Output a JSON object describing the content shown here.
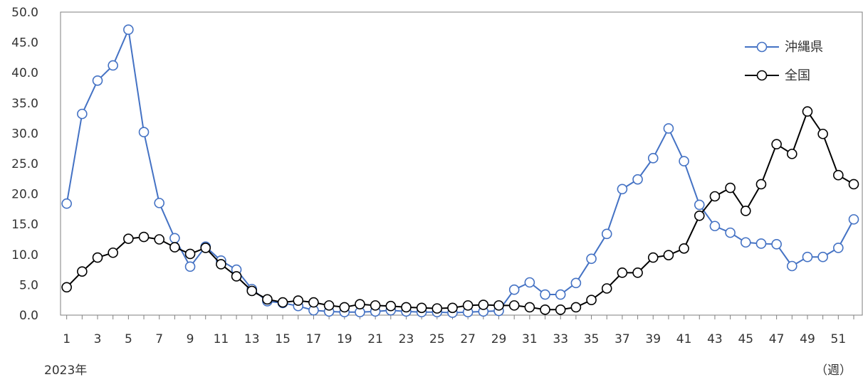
{
  "chart_data": {
    "type": "line",
    "x_label_note": "2023年",
    "x_unit": "（週）",
    "ylim": [
      0,
      50
    ],
    "y_ticks": [
      "0.0",
      "5.0",
      "10.0",
      "15.0",
      "20.0",
      "25.0",
      "30.0",
      "35.0",
      "40.0",
      "45.0",
      "50.0"
    ],
    "x": [
      1,
      2,
      3,
      4,
      5,
      6,
      7,
      8,
      9,
      10,
      11,
      12,
      13,
      14,
      15,
      16,
      17,
      18,
      19,
      20,
      21,
      22,
      23,
      24,
      25,
      26,
      27,
      28,
      29,
      30,
      31,
      32,
      33,
      34,
      35,
      36,
      37,
      38,
      39,
      40,
      41,
      42,
      43,
      44,
      45,
      46,
      47,
      48,
      49,
      50,
      51,
      52
    ],
    "x_tick_labels": [
      "1",
      "3",
      "5",
      "7",
      "9",
      "11",
      "13",
      "15",
      "17",
      "19",
      "21",
      "23",
      "25",
      "27",
      "29",
      "31",
      "33",
      "35",
      "37",
      "39",
      "41",
      "43",
      "45",
      "47",
      "49",
      "51"
    ],
    "legend_position": "top-right",
    "grid": false,
    "series": [
      {
        "name": "沖縄県",
        "color": "#4472C4",
        "values": [
          18.4,
          33.2,
          38.7,
          41.2,
          47.1,
          30.2,
          18.5,
          12.7,
          8.0,
          11.3,
          9.0,
          7.5,
          4.3,
          2.3,
          2.0,
          1.5,
          0.8,
          0.6,
          0.5,
          0.5,
          0.6,
          0.8,
          0.6,
          0.5,
          0.5,
          0.4,
          0.5,
          0.6,
          0.7,
          4.2,
          5.4,
          3.4,
          3.4,
          5.3,
          9.3,
          13.4,
          20.8,
          22.4,
          25.9,
          30.8,
          25.4,
          18.2,
          14.7,
          13.6,
          12.0,
          11.8,
          11.7,
          8.1,
          9.6,
          9.6,
          11.1,
          15.8
        ]
      },
      {
        "name": "全国",
        "color": "#000000",
        "values": [
          4.6,
          7.2,
          9.5,
          10.3,
          12.6,
          12.9,
          12.5,
          11.2,
          10.1,
          11.1,
          8.4,
          6.4,
          4.0,
          2.6,
          2.1,
          2.4,
          2.1,
          1.6,
          1.3,
          1.8,
          1.6,
          1.5,
          1.3,
          1.2,
          1.1,
          1.2,
          1.6,
          1.7,
          1.6,
          1.6,
          1.3,
          0.9,
          0.9,
          1.3,
          2.5,
          4.4,
          7.0,
          7.0,
          9.5,
          9.9,
          11.0,
          16.4,
          19.6,
          21.0,
          17.2,
          21.6,
          28.2,
          26.6,
          33.6,
          29.9,
          23.1,
          21.6
        ]
      }
    ]
  }
}
